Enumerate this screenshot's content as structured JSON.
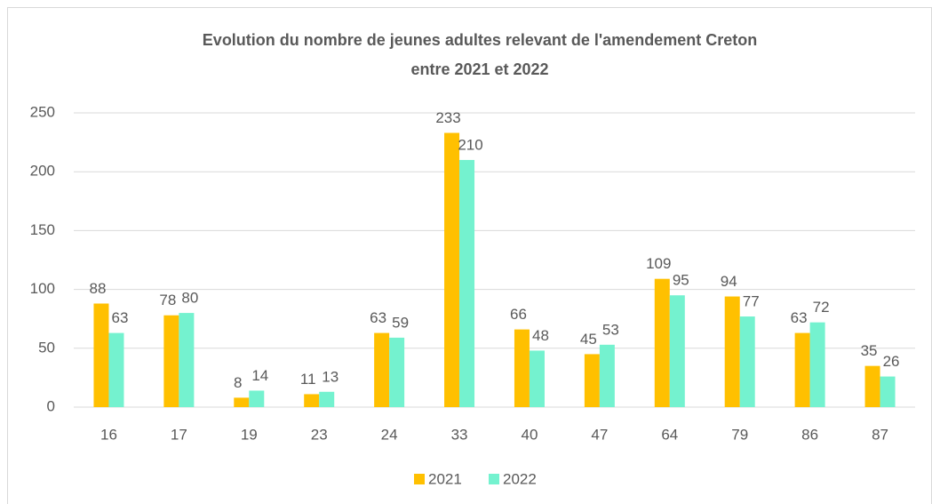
{
  "chart_data": {
    "type": "bar",
    "title": [
      "Evolution du nombre de jeunes adultes relevant de l'amendement Creton",
      "entre 2021 et 2022"
    ],
    "categories": [
      "16",
      "17",
      "19",
      "23",
      "24",
      "33",
      "40",
      "47",
      "64",
      "79",
      "86",
      "87"
    ],
    "series": [
      {
        "name": "2021",
        "color": "#ffc000",
        "values": [
          88,
          78,
          8,
          11,
          63,
          233,
          66,
          45,
          109,
          94,
          63,
          35
        ]
      },
      {
        "name": "2022",
        "color": "#74f2cf",
        "values": [
          63,
          80,
          14,
          13,
          59,
          210,
          48,
          53,
          95,
          77,
          72,
          26
        ]
      }
    ],
    "ylim": [
      0,
      250
    ],
    "yticks": [
      0,
      50,
      100,
      150,
      200,
      250
    ],
    "grid": true,
    "legend": "bottom"
  }
}
